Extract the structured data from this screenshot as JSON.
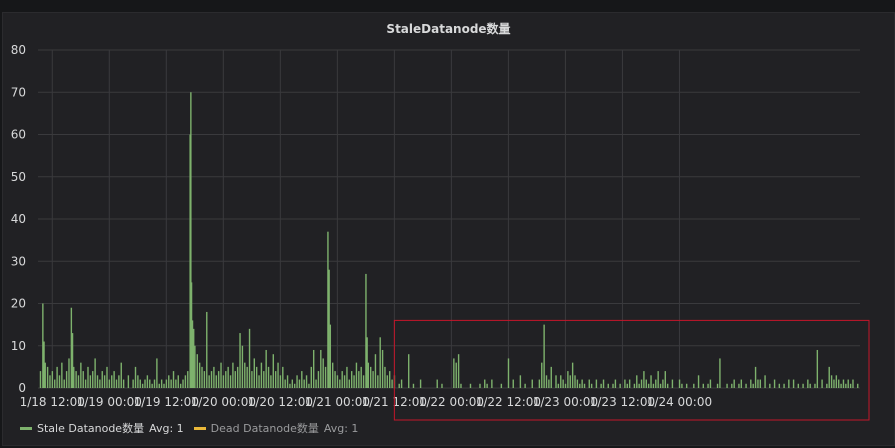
{
  "panel": {
    "title": "StaleDatanode数量"
  },
  "colors": {
    "stale": "#7eb26d",
    "dead": "#eab839",
    "highlight": "#c4162a",
    "grid": "#3a3a3d",
    "text": "#d8d9da"
  },
  "legend": [
    {
      "swatch_color": "#7eb26d",
      "name": "Stale Datanode数量",
      "stat": "Avg: 1"
    },
    {
      "swatch_color": "#eab839",
      "name": "Dead Datanode数量",
      "stat": "Avg: 1"
    }
  ],
  "chart_data": {
    "type": "bar",
    "title": "StaleDatanode数量",
    "xlabel": "",
    "ylabel": "",
    "ylim": [
      0,
      80
    ],
    "yticks": [
      0,
      10,
      20,
      30,
      40,
      50,
      60,
      70,
      80
    ],
    "xlim_hours": [
      0,
      168
    ],
    "x_unit": "hours since 1/17 12:00",
    "xticks": [
      {
        "h": 6,
        "label": "1/18 12:00"
      },
      {
        "h": 30,
        "label": "1/19 00:00"
      },
      {
        "h": 54,
        "label": "1/19 12:00"
      },
      {
        "h": 78,
        "label": "1/20 00:00"
      },
      {
        "h": 102,
        "label": "1/20 12:00"
      },
      {
        "h": 126,
        "label": "1/21 00:00"
      },
      {
        "h": 150,
        "label": "1/21 12:00"
      },
      {
        "h": 174,
        "label": "1/22 00:00"
      },
      {
        "h": 198,
        "label": "1/22 12:00"
      },
      {
        "h": 222,
        "label": "1/23 00:00"
      },
      {
        "h": 246,
        "label": "1/23 12:00"
      },
      {
        "h": 270,
        "label": "1/24 00:00"
      }
    ],
    "grid": true,
    "legend_position": "bottom-left",
    "series": [
      {
        "name": "Stale Datanode数量",
        "color": "#7eb26d",
        "points": [
          [
            1,
            4
          ],
          [
            2,
            20
          ],
          [
            2.5,
            11
          ],
          [
            3,
            6
          ],
          [
            4,
            5
          ],
          [
            5,
            3
          ],
          [
            6,
            4
          ],
          [
            7,
            2
          ],
          [
            8,
            5
          ],
          [
            9,
            3
          ],
          [
            10,
            6
          ],
          [
            11,
            2
          ],
          [
            12,
            4
          ],
          [
            13,
            7
          ],
          [
            14,
            19
          ],
          [
            14.5,
            13
          ],
          [
            15,
            5
          ],
          [
            16,
            4
          ],
          [
            17,
            3
          ],
          [
            18,
            6
          ],
          [
            19,
            4
          ],
          [
            20,
            2
          ],
          [
            21,
            5
          ],
          [
            22,
            3
          ],
          [
            23,
            4
          ],
          [
            24,
            7
          ],
          [
            25,
            3
          ],
          [
            26,
            2
          ],
          [
            27,
            4
          ],
          [
            28,
            3
          ],
          [
            29,
            5
          ],
          [
            30,
            2
          ],
          [
            31,
            3
          ],
          [
            32,
            4
          ],
          [
            33,
            2
          ],
          [
            34,
            3
          ],
          [
            35,
            6
          ],
          [
            36,
            2
          ],
          [
            38,
            3
          ],
          [
            40,
            2
          ],
          [
            41,
            5
          ],
          [
            42,
            3
          ],
          [
            43,
            2
          ],
          [
            44,
            1
          ],
          [
            45,
            2
          ],
          [
            46,
            3
          ],
          [
            47,
            2
          ],
          [
            48,
            1
          ],
          [
            49,
            2
          ],
          [
            50,
            7
          ],
          [
            51,
            1
          ],
          [
            52,
            2
          ],
          [
            53,
            1
          ],
          [
            54,
            2
          ],
          [
            55,
            3
          ],
          [
            56,
            2
          ],
          [
            57,
            4
          ],
          [
            58,
            2
          ],
          [
            59,
            3
          ],
          [
            60,
            1
          ],
          [
            61,
            2
          ],
          [
            62,
            3
          ],
          [
            63,
            4
          ],
          [
            64,
            60
          ],
          [
            64.3,
            70
          ],
          [
            64.6,
            25
          ],
          [
            65,
            16
          ],
          [
            65.5,
            14
          ],
          [
            66,
            10
          ],
          [
            67,
            8
          ],
          [
            68,
            6
          ],
          [
            69,
            5
          ],
          [
            70,
            4
          ],
          [
            71,
            18
          ],
          [
            72,
            3
          ],
          [
            73,
            4
          ],
          [
            74,
            5
          ],
          [
            75,
            3
          ],
          [
            76,
            4
          ],
          [
            77,
            6
          ],
          [
            78,
            3
          ],
          [
            79,
            4
          ],
          [
            80,
            5
          ],
          [
            81,
            3
          ],
          [
            82,
            6
          ],
          [
            83,
            4
          ],
          [
            84,
            5
          ],
          [
            85,
            13
          ],
          [
            86,
            10
          ],
          [
            87,
            6
          ],
          [
            88,
            5
          ],
          [
            89,
            14
          ],
          [
            90,
            4
          ],
          [
            91,
            7
          ],
          [
            92,
            5
          ],
          [
            93,
            3
          ],
          [
            94,
            6
          ],
          [
            95,
            4
          ],
          [
            96,
            9
          ],
          [
            97,
            5
          ],
          [
            98,
            3
          ],
          [
            99,
            8
          ],
          [
            100,
            4
          ],
          [
            101,
            6
          ],
          [
            102,
            3
          ],
          [
            103,
            5
          ],
          [
            104,
            2
          ],
          [
            105,
            3
          ],
          [
            106,
            1
          ],
          [
            107,
            2
          ],
          [
            108,
            1
          ],
          [
            109,
            3
          ],
          [
            110,
            2
          ],
          [
            111,
            4
          ],
          [
            112,
            2
          ],
          [
            113,
            3
          ],
          [
            114,
            1
          ],
          [
            115,
            5
          ],
          [
            116,
            9
          ],
          [
            117,
            2
          ],
          [
            118,
            4
          ],
          [
            119,
            9
          ],
          [
            120,
            7
          ],
          [
            121,
            5
          ],
          [
            122,
            37
          ],
          [
            122.5,
            28
          ],
          [
            123,
            15
          ],
          [
            124,
            6
          ],
          [
            125,
            4
          ],
          [
            126,
            3
          ],
          [
            127,
            2
          ],
          [
            128,
            4
          ],
          [
            129,
            3
          ],
          [
            130,
            5
          ],
          [
            131,
            2
          ],
          [
            132,
            4
          ],
          [
            133,
            3
          ],
          [
            134,
            6
          ],
          [
            135,
            4
          ],
          [
            136,
            5
          ],
          [
            137,
            3
          ],
          [
            138,
            27
          ],
          [
            138.5,
            12
          ],
          [
            139,
            6
          ],
          [
            140,
            5
          ],
          [
            141,
            4
          ],
          [
            142,
            8
          ],
          [
            143,
            3
          ],
          [
            144,
            12
          ],
          [
            145,
            9
          ],
          [
            146,
            5
          ],
          [
            147,
            3
          ],
          [
            148,
            4
          ],
          [
            149,
            2
          ],
          [
            150,
            3
          ],
          [
            152,
            1
          ],
          [
            153,
            2
          ],
          [
            156,
            8
          ],
          [
            158,
            1
          ],
          [
            161,
            2
          ],
          [
            168,
            2
          ],
          [
            170,
            1
          ],
          [
            175,
            7
          ],
          [
            176,
            6
          ],
          [
            177,
            8
          ],
          [
            178,
            1
          ],
          [
            182,
            1
          ],
          [
            186,
            1
          ],
          [
            188,
            2
          ],
          [
            189,
            1
          ],
          [
            191,
            2
          ],
          [
            195,
            1
          ],
          [
            198,
            7
          ],
          [
            200,
            2
          ],
          [
            203,
            3
          ],
          [
            205,
            1
          ],
          [
            208,
            2
          ],
          [
            211,
            2
          ],
          [
            212,
            6
          ],
          [
            213,
            15
          ],
          [
            214,
            3
          ],
          [
            215,
            2
          ],
          [
            216,
            5
          ],
          [
            218,
            3
          ],
          [
            219,
            1
          ],
          [
            220,
            3
          ],
          [
            221,
            2
          ],
          [
            222,
            1
          ],
          [
            223,
            4
          ],
          [
            224,
            3
          ],
          [
            225,
            6
          ],
          [
            226,
            3
          ],
          [
            227,
            2
          ],
          [
            228,
            1
          ],
          [
            229,
            2
          ],
          [
            230,
            1
          ],
          [
            232,
            2
          ],
          [
            233,
            1
          ],
          [
            235,
            2
          ],
          [
            237,
            1
          ],
          [
            238,
            2
          ],
          [
            240,
            1
          ],
          [
            242,
            1
          ],
          [
            243,
            2
          ],
          [
            245,
            1
          ],
          [
            247,
            2
          ],
          [
            248,
            1
          ],
          [
            249,
            2
          ],
          [
            251,
            1
          ],
          [
            252,
            3
          ],
          [
            253,
            1
          ],
          [
            254,
            2
          ],
          [
            255,
            4
          ],
          [
            256,
            2
          ],
          [
            257,
            1
          ],
          [
            258,
            3
          ],
          [
            259,
            1
          ],
          [
            260,
            2
          ],
          [
            261,
            4
          ],
          [
            262,
            1
          ],
          [
            263,
            2
          ],
          [
            264,
            4
          ],
          [
            265,
            1
          ],
          [
            267,
            2
          ],
          [
            270,
            2
          ],
          [
            271,
            1
          ],
          [
            273,
            1
          ],
          [
            276,
            1
          ],
          [
            278,
            3
          ],
          [
            280,
            1
          ],
          [
            282,
            1
          ],
          [
            283,
            2
          ],
          [
            286,
            1
          ],
          [
            287,
            7
          ],
          [
            290,
            1
          ],
          [
            292,
            1
          ],
          [
            293,
            2
          ],
          [
            295,
            1
          ],
          [
            296,
            2
          ],
          [
            298,
            1
          ],
          [
            300,
            2
          ],
          [
            301,
            1
          ],
          [
            302,
            5
          ],
          [
            303,
            2
          ],
          [
            304,
            2
          ],
          [
            306,
            3
          ],
          [
            308,
            1
          ],
          [
            310,
            2
          ],
          [
            312,
            1
          ],
          [
            314,
            1
          ],
          [
            316,
            2
          ],
          [
            318,
            2
          ],
          [
            320,
            1
          ],
          [
            322,
            1
          ],
          [
            324,
            2
          ],
          [
            325,
            1
          ],
          [
            327,
            1
          ],
          [
            328,
            9
          ],
          [
            330,
            2
          ],
          [
            332,
            1
          ],
          [
            333,
            5
          ],
          [
            334,
            3
          ],
          [
            335,
            2
          ],
          [
            336,
            3
          ],
          [
            337,
            2
          ],
          [
            338,
            1
          ],
          [
            339,
            2
          ],
          [
            340,
            1
          ],
          [
            341,
            2
          ],
          [
            342,
            1
          ],
          [
            343,
            2
          ],
          [
            345,
            1
          ]
        ]
      }
    ],
    "annotations": [
      {
        "type": "highlight-box",
        "x_from": 150,
        "x_to": 357,
        "y_from": 0,
        "y_to": 16
      }
    ]
  }
}
